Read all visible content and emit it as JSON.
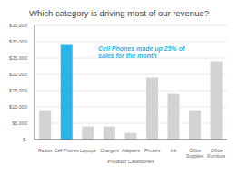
{
  "chart_data": {
    "type": "bar",
    "title": "Which category is driving most of our revenue?",
    "x_label": "Product Categories",
    "categories": [
      "Radios",
      "Cell Phones",
      "Laptops",
      "Chargers",
      "Adapters",
      "Printers",
      "Ink",
      "Office\nSupplies",
      "Office\nFurniture"
    ],
    "values": [
      9000,
      29000,
      4000,
      4000,
      2000,
      19000,
      14000,
      9000,
      24000
    ],
    "colors": [
      "#d3d3d3",
      "#29b5e8",
      "#d3d3d3",
      "#d3d3d3",
      "#d3d3d3",
      "#d3d3d3",
      "#d3d3d3",
      "#d3d3d3",
      "#d3d3d3"
    ],
    "annotations": [
      {
        "text": "Cell Phones made up 25% of\nsales for the month",
        "color": "#29b5e8"
      }
    ],
    "ylim": [
      0,
      35000
    ],
    "yticks": [
      {
        "value": 0,
        "label": "$-"
      },
      {
        "value": 5000,
        "label": "$5,000"
      },
      {
        "value": 10000,
        "label": "$10,000"
      },
      {
        "value": 15000,
        "label": "$15,000"
      },
      {
        "value": 20000,
        "label": "$20,000"
      },
      {
        "value": 25000,
        "label": "$25,000"
      },
      {
        "value": 30000,
        "label": "$30,000"
      },
      {
        "value": 35000,
        "label": "$35,000"
      }
    ],
    "grid": true
  }
}
